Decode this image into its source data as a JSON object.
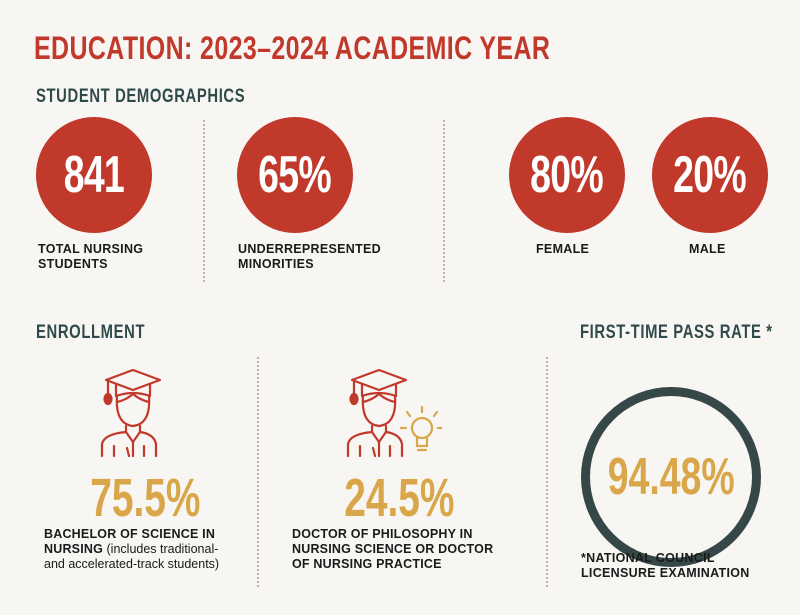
{
  "title": "EDUCATION: 2023–2024 ACADEMIC YEAR",
  "demographics": {
    "heading": "STUDENT DEMOGRAPHICS",
    "stats": [
      {
        "value": "841",
        "label_line1": "TOTAL NURSING",
        "label_line2": "STUDENTS"
      },
      {
        "value": "65%",
        "label_line1": "UNDERREPRESENTED",
        "label_line2": "MINORITIES"
      },
      {
        "value": "80%",
        "label_line1": "FEMALE",
        "label_line2": ""
      },
      {
        "value": "20%",
        "label_line1": "MALE",
        "label_line2": ""
      }
    ]
  },
  "enrollment": {
    "heading": "ENROLLMENT",
    "items": [
      {
        "icon": "graduate-icon",
        "value": "75.5%",
        "label_bold_1": "BACHELOR OF SCIENCE IN",
        "label_bold_2": "NURSING",
        "label_rest_2": " (includes traditional-",
        "label_rest_3": "and accelerated-track students)"
      },
      {
        "icon": "graduate-lightbulb-icon",
        "value": "24.5%",
        "label_bold_1": "DOCTOR OF PHILOSOPHY IN",
        "label_bold_2": "NURSING SCIENCE OR DOCTOR",
        "label_bold_3": "OF NURSING PRACTICE"
      }
    ]
  },
  "pass_rate": {
    "heading": "FIRST-TIME PASS RATE *",
    "value": "94.48%",
    "footnote_1": "*NATIONAL COUNCIL",
    "footnote_2": "LICENSURE EXAMINATION"
  },
  "colors": {
    "red": "#c0392b",
    "gold": "#d9a64a",
    "slate": "#354747",
    "background": "#f8f6f3"
  }
}
